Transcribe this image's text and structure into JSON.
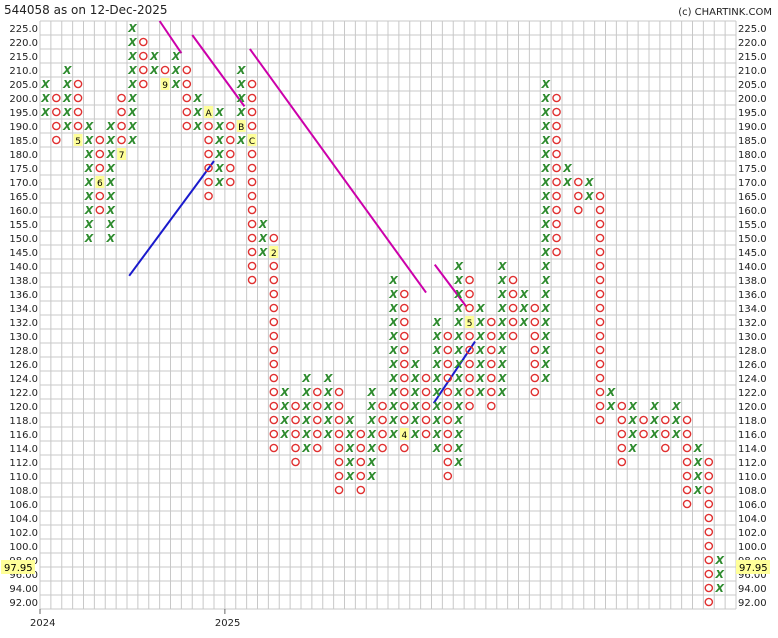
{
  "chart_data": {
    "type": "point-and-figure",
    "title": "544058 as on 12-Dec-2025",
    "watermark": "(c) CHARTINK.COM",
    "y_ticks": [
      "92.00",
      "94.00",
      "96.00",
      "98.00",
      "100.0",
      "102.0",
      "104.0",
      "106.0",
      "108.0",
      "110.0",
      "112.0",
      "114.0",
      "116.0",
      "118.0",
      "120.0",
      "122.0",
      "124.0",
      "126.0",
      "128.0",
      "130.0",
      "132.0",
      "134.0",
      "136.0",
      "138.0",
      "140.0",
      "145.0",
      "150.0",
      "155.0",
      "160.0",
      "165.0",
      "170.0",
      "175.0",
      "180.0",
      "185.0",
      "190.0",
      "195.0",
      "200.0",
      "205.0",
      "210.0",
      "215.0",
      "220.0",
      "225.0"
    ],
    "x_labels": [
      {
        "col": 0,
        "label": "2024"
      },
      {
        "col": 17,
        "label": "2025"
      }
    ],
    "current_price": "97.95",
    "current_row": 2.5,
    "colors": {
      "x": "#2e8b2e",
      "o": "#e03030",
      "resistance": "#cc00aa",
      "support": "#1a1acc",
      "highlight": "#ffff99"
    },
    "columns": [
      {
        "t": "X",
        "lo": 35,
        "hi": 37
      },
      {
        "t": "O",
        "lo": 33,
        "hi": 36
      },
      {
        "t": "X",
        "lo": 34,
        "hi": 38
      },
      {
        "t": "O",
        "lo": 33,
        "hi": 37
      },
      {
        "t": "X",
        "lo": 26,
        "hi": 34
      },
      {
        "t": "O",
        "lo": 28,
        "hi": 33
      },
      {
        "t": "X",
        "lo": 26,
        "hi": 34
      },
      {
        "t": "O",
        "lo": 32,
        "hi": 36
      },
      {
        "t": "X",
        "lo": 33,
        "hi": 41
      },
      {
        "t": "O",
        "lo": 37,
        "hi": 40
      },
      {
        "t": "X",
        "lo": 38,
        "hi": 39
      },
      {
        "t": "O",
        "lo": 37,
        "hi": 38
      },
      {
        "t": "X",
        "lo": 37,
        "hi": 39
      },
      {
        "t": "O",
        "lo": 34,
        "hi": 38
      },
      {
        "t": "X",
        "lo": 34,
        "hi": 36
      },
      {
        "t": "O",
        "lo": 29,
        "hi": 35
      },
      {
        "t": "X",
        "lo": 30,
        "hi": 35
      },
      {
        "t": "O",
        "lo": 30,
        "hi": 34
      },
      {
        "t": "X",
        "lo": 33,
        "hi": 38
      },
      {
        "t": "O",
        "lo": 23,
        "hi": 37
      },
      {
        "t": "X",
        "lo": 25,
        "hi": 27
      },
      {
        "t": "O",
        "lo": 11,
        "hi": 26
      },
      {
        "t": "X",
        "lo": 12,
        "hi": 15
      },
      {
        "t": "O",
        "lo": 10,
        "hi": 14
      },
      {
        "t": "X",
        "lo": 11,
        "hi": 16
      },
      {
        "t": "O",
        "lo": 11,
        "hi": 15
      },
      {
        "t": "X",
        "lo": 12,
        "hi": 16
      },
      {
        "t": "O",
        "lo": 8,
        "hi": 15
      },
      {
        "t": "X",
        "lo": 9,
        "hi": 13
      },
      {
        "t": "O",
        "lo": 8,
        "hi": 12
      },
      {
        "t": "X",
        "lo": 9,
        "hi": 15
      },
      {
        "t": "O",
        "lo": 11,
        "hi": 14
      },
      {
        "t": "X",
        "lo": 12,
        "hi": 23
      },
      {
        "t": "O",
        "lo": 11,
        "hi": 22
      },
      {
        "t": "X",
        "lo": 12,
        "hi": 17
      },
      {
        "t": "O",
        "lo": 12,
        "hi": 16
      },
      {
        "t": "X",
        "lo": 11,
        "hi": 20
      },
      {
        "t": "O",
        "lo": 9,
        "hi": 19
      },
      {
        "t": "X",
        "lo": 10,
        "hi": 24
      },
      {
        "t": "O",
        "lo": 14,
        "hi": 23
      },
      {
        "t": "X",
        "lo": 15,
        "hi": 21
      },
      {
        "t": "O",
        "lo": 14,
        "hi": 20
      },
      {
        "t": "X",
        "lo": 15,
        "hi": 24
      },
      {
        "t": "O",
        "lo": 19,
        "hi": 23
      },
      {
        "t": "X",
        "lo": 20,
        "hi": 22
      },
      {
        "t": "O",
        "lo": 15,
        "hi": 21
      },
      {
        "t": "X",
        "lo": 16,
        "hi": 37
      },
      {
        "t": "O",
        "lo": 25,
        "hi": 36
      },
      {
        "t": "X",
        "lo": 30,
        "hi": 31
      },
      {
        "t": "O",
        "lo": 28,
        "hi": 30
      },
      {
        "t": "X",
        "lo": 29,
        "hi": 30
      },
      {
        "t": "O",
        "lo": 13,
        "hi": 29
      },
      {
        "t": "X",
        "lo": 14,
        "hi": 15
      },
      {
        "t": "O",
        "lo": 10,
        "hi": 14
      },
      {
        "t": "X",
        "lo": 11,
        "hi": 14
      },
      {
        "t": "O",
        "lo": 12,
        "hi": 13
      },
      {
        "t": "X",
        "lo": 12,
        "hi": 14
      },
      {
        "t": "O",
        "lo": 11,
        "hi": 13
      },
      {
        "t": "X",
        "lo": 12,
        "hi": 14
      },
      {
        "t": "O",
        "lo": 7,
        "hi": 13
      },
      {
        "t": "X",
        "lo": 8,
        "hi": 11
      },
      {
        "t": "O",
        "lo": 0,
        "hi": 10
      },
      {
        "t": "X",
        "lo": 1,
        "hi": 3
      }
    ],
    "markers": [
      {
        "col": 2,
        "row": 33,
        "label": "4"
      },
      {
        "col": 3,
        "row": 33,
        "label": "5"
      },
      {
        "col": 5,
        "row": 30,
        "label": "6"
      },
      {
        "col": 7,
        "row": 32,
        "label": "7"
      },
      {
        "col": 7,
        "row": 29,
        "label": "8"
      },
      {
        "col": 11,
        "row": 37,
        "label": "9"
      },
      {
        "col": 15,
        "row": 35,
        "label": "A"
      },
      {
        "col": 18,
        "row": 34,
        "label": "B"
      },
      {
        "col": 19,
        "row": 33,
        "label": "C"
      },
      {
        "col": 20,
        "row": 32,
        "label": "1"
      },
      {
        "col": 21,
        "row": 25,
        "label": "2"
      },
      {
        "col": 28,
        "row": 8,
        "label": "3"
      },
      {
        "col": 33,
        "row": 12,
        "label": "4"
      },
      {
        "col": 39,
        "row": 20,
        "label": "5"
      },
      {
        "col": 42,
        "row": 31,
        "label": "6"
      },
      {
        "col": 43,
        "row": 31,
        "label": "7"
      },
      {
        "col": 44,
        "row": 28,
        "label": "8"
      },
      {
        "col": 48,
        "row": 11,
        "label": "9"
      },
      {
        "col": 50,
        "row": 11,
        "label": "A"
      },
      {
        "col": 51,
        "row": 11,
        "label": "B"
      },
      {
        "col": 51,
        "row": 2,
        "label": "C"
      }
    ],
    "trendlines": [
      {
        "kind": "resistance",
        "from": [
          10.5,
          41.5
        ],
        "to": [
          12.5,
          39.2
        ]
      },
      {
        "kind": "resistance",
        "from": [
          13.5,
          40.5
        ],
        "to": [
          18.3,
          35.4
        ]
      },
      {
        "kind": "resistance",
        "from": [
          18.8,
          39.5
        ],
        "to": [
          35.0,
          22.1
        ]
      },
      {
        "kind": "resistance",
        "from": [
          35.8,
          24.1
        ],
        "to": [
          38.7,
          21.1
        ]
      },
      {
        "kind": "support",
        "from": [
          7.7,
          23.3
        ],
        "to": [
          15.5,
          31.5
        ]
      },
      {
        "kind": "support",
        "from": [
          35.7,
          14.2
        ],
        "to": [
          39.5,
          18.6
        ]
      }
    ]
  }
}
